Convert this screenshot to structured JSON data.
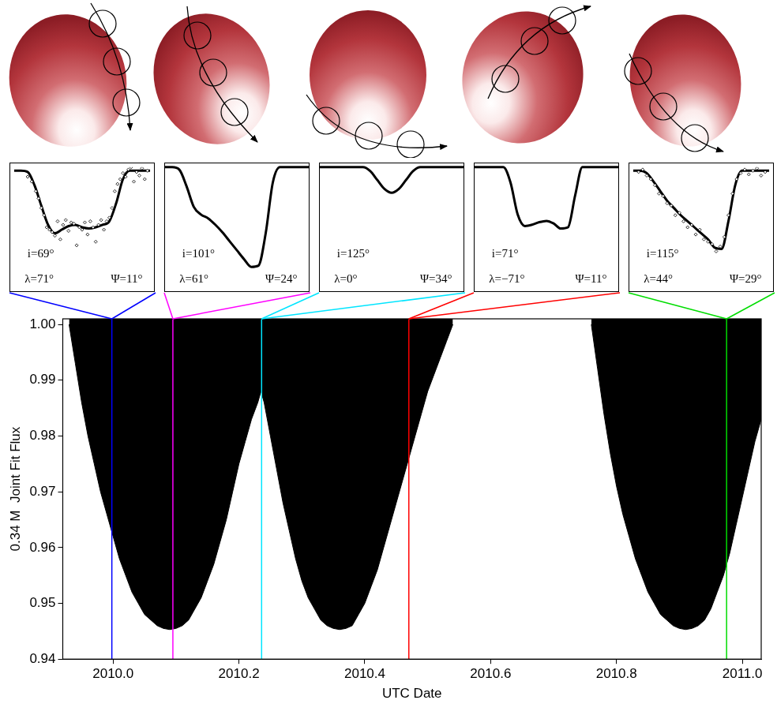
{
  "chart_data": [
    {
      "type": "line",
      "x_label": "UTC Date",
      "y_label": "0.34 M  Joint Fit Flux",
      "x": [
        2009.93,
        2009.94,
        2009.95,
        2009.96,
        2009.97,
        2009.98,
        2009.99,
        2010.0,
        2010.01,
        2010.02,
        2010.03,
        2010.04,
        2010.05,
        2010.06,
        2010.07,
        2010.08,
        2010.09,
        2010.1,
        2010.11,
        2010.12,
        2010.13,
        2010.14,
        2010.15,
        2010.16,
        2010.17,
        2010.18,
        2010.19,
        2010.2,
        2010.21,
        2010.22,
        2010.23,
        2010.235,
        2010.24,
        2010.25,
        2010.26,
        2010.27,
        2010.28,
        2010.29,
        2010.3,
        2010.31,
        2010.32,
        2010.33,
        2010.34,
        2010.35,
        2010.36,
        2010.37,
        2010.38,
        2010.39,
        2010.4,
        2010.41,
        2010.42,
        2010.43,
        2010.44,
        2010.45,
        2010.46,
        2010.47,
        2010.48,
        2010.49,
        2010.5,
        2010.51,
        2010.52,
        2010.53,
        2010.54,
        2010.65,
        2010.76,
        2010.77,
        2010.78,
        2010.79,
        2010.8,
        2010.81,
        2010.82,
        2010.83,
        2010.84,
        2010.85,
        2010.86,
        2010.87,
        2010.88,
        2010.89,
        2010.9,
        2010.91,
        2010.92,
        2010.93,
        2010.94,
        2010.95,
        2010.96,
        2010.97,
        2010.98,
        2010.99,
        2011.0,
        2011.01,
        2011.02,
        2011.03
      ],
      "values": [
        1.0,
        0.993,
        0.986,
        0.98,
        0.975,
        0.97,
        0.966,
        0.962,
        0.958,
        0.955,
        0.952,
        0.95,
        0.948,
        0.947,
        0.946,
        0.9455,
        0.9453,
        0.9455,
        0.946,
        0.947,
        0.949,
        0.951,
        0.954,
        0.957,
        0.961,
        0.965,
        0.97,
        0.975,
        0.979,
        0.983,
        0.986,
        0.988,
        0.986,
        0.98,
        0.974,
        0.968,
        0.963,
        0.958,
        0.954,
        0.951,
        0.949,
        0.947,
        0.946,
        0.9455,
        0.9453,
        0.9455,
        0.946,
        0.948,
        0.95,
        0.953,
        0.956,
        0.96,
        0.964,
        0.968,
        0.972,
        0.976,
        0.98,
        0.984,
        0.988,
        0.991,
        0.994,
        0.997,
        1.0,
        null,
        1.0,
        0.992,
        0.984,
        0.977,
        0.971,
        0.966,
        0.962,
        0.958,
        0.955,
        0.952,
        0.95,
        0.948,
        0.947,
        0.946,
        0.9455,
        0.9453,
        0.9455,
        0.946,
        0.947,
        0.949,
        0.952,
        0.955,
        0.959,
        0.964,
        0.969,
        0.974,
        0.979,
        0.983
      ],
      "color": "#000000",
      "xlim": [
        2009.92,
        2011.03
      ],
      "xticks": [
        {
          "value": 2010,
          "label": "2010.0"
        },
        2010.2,
        2010.4,
        2010.6,
        2010.8,
        {
          "value": 2011,
          "label": "2011.0"
        }
      ],
      "ylim": [
        0.94,
        1.001
      ],
      "yticks": [
        0.94,
        0.95,
        0.96,
        0.97,
        0.98,
        0.99,
        {
          "value": 1,
          "label": "1.00"
        }
      ],
      "grid": false,
      "markers": [
        {
          "x": 2009.998,
          "color": "#0000ff"
        },
        {
          "x": 2010.095,
          "color": "#ff00ff"
        },
        {
          "x": 2010.236,
          "color": "#00e5ff"
        },
        {
          "x": 2010.47,
          "color": "#ff0000"
        },
        {
          "x": 2010.975,
          "color": "#00dd00"
        }
      ]
    },
    {
      "type": "line",
      "tick_labels": false,
      "xlim": [
        0,
        1
      ],
      "ylim": [
        0,
        1
      ],
      "color": "#000000",
      "annotations": [
        "i=69°",
        "λ=71°",
        "Ψ=11°"
      ],
      "x": [
        0,
        0.05,
        0.1,
        0.15,
        0.2,
        0.25,
        0.3,
        0.35,
        0.4,
        0.45,
        0.5,
        0.55,
        0.6,
        0.65,
        0.7,
        0.75,
        0.8,
        0.85,
        0.9,
        0.95,
        1
      ],
      "values": [
        0.97,
        0.97,
        0.96,
        0.85,
        0.68,
        0.52,
        0.45,
        0.48,
        0.51,
        0.52,
        0.5,
        0.49,
        0.5,
        0.52,
        0.55,
        0.7,
        0.9,
        0.97,
        0.97,
        0.97,
        0.97
      ],
      "observed": {
        "marker": "diamond",
        "color": "#000000",
        "x": [
          0.1,
          0.13,
          0.16,
          0.18,
          0.2,
          0.22,
          0.24,
          0.26,
          0.28,
          0.3,
          0.32,
          0.34,
          0.36,
          0.38,
          0.4,
          0.42,
          0.44,
          0.46,
          0.48,
          0.5,
          0.52,
          0.54,
          0.56,
          0.58,
          0.6,
          0.62,
          0.64,
          0.66,
          0.68,
          0.7,
          0.72,
          0.74,
          0.76,
          0.78,
          0.8,
          0.82,
          0.84,
          0.86,
          0.88,
          0.9,
          0.92,
          0.94,
          0.96,
          0.98
        ],
        "values": [
          0.92,
          0.88,
          0.8,
          0.74,
          0.66,
          0.6,
          0.5,
          0.48,
          0.46,
          0.43,
          0.55,
          0.4,
          0.52,
          0.56,
          0.47,
          0.54,
          0.53,
          0.35,
          0.5,
          0.48,
          0.54,
          0.44,
          0.55,
          0.5,
          0.38,
          0.52,
          0.56,
          0.48,
          0.55,
          0.58,
          0.66,
          0.8,
          0.86,
          0.9,
          0.95,
          0.92,
          0.98,
          1.0,
          0.88,
          0.96,
          0.93,
          0.99,
          0.9,
          0.97
        ]
      }
    },
    {
      "type": "line",
      "tick_labels": false,
      "xlim": [
        0,
        1
      ],
      "ylim": [
        0,
        1
      ],
      "color": "#000000",
      "annotations": [
        "i=101°",
        "λ=61°",
        "Ψ=24°"
      ],
      "x": [
        0,
        0.05,
        0.1,
        0.15,
        0.2,
        0.25,
        0.3,
        0.35,
        0.4,
        0.45,
        0.5,
        0.55,
        0.6,
        0.65,
        0.7,
        0.75,
        0.8,
        0.85,
        0.9,
        0.95,
        1
      ],
      "values": [
        0.97,
        0.97,
        0.95,
        0.82,
        0.66,
        0.6,
        0.57,
        0.52,
        0.46,
        0.39,
        0.32,
        0.25,
        0.19,
        0.2,
        0.45,
        0.85,
        0.97,
        0.97,
        0.97,
        0.97,
        0.97
      ]
    },
    {
      "type": "line",
      "tick_labels": false,
      "xlim": [
        0,
        1
      ],
      "ylim": [
        0,
        1
      ],
      "color": "#000000",
      "annotations": [
        "i=125°",
        "λ=0°",
        "Ψ=34°"
      ],
      "x": [
        0,
        0.05,
        0.1,
        0.15,
        0.2,
        0.25,
        0.3,
        0.35,
        0.4,
        0.45,
        0.5,
        0.55,
        0.6,
        0.65,
        0.7,
        0.75,
        0.8,
        0.85,
        0.9,
        0.95,
        1
      ],
      "values": [
        0.97,
        0.97,
        0.97,
        0.97,
        0.97,
        0.97,
        0.97,
        0.94,
        0.87,
        0.8,
        0.77,
        0.8,
        0.87,
        0.94,
        0.97,
        0.97,
        0.97,
        0.97,
        0.97,
        0.97,
        0.97
      ]
    },
    {
      "type": "line",
      "tick_labels": false,
      "xlim": [
        0,
        1
      ],
      "ylim": [
        0,
        1
      ],
      "color": "#000000",
      "annotations": [
        "i=71°",
        "λ=−71°",
        "Ψ=11°"
      ],
      "x": [
        0,
        0.05,
        0.1,
        0.15,
        0.2,
        0.25,
        0.3,
        0.35,
        0.4,
        0.45,
        0.5,
        0.55,
        0.6,
        0.65,
        0.7,
        0.75,
        0.8,
        0.85,
        0.9,
        0.95,
        1
      ],
      "values": [
        0.97,
        0.97,
        0.97,
        0.97,
        0.97,
        0.85,
        0.6,
        0.51,
        0.52,
        0.54,
        0.55,
        0.53,
        0.49,
        0.5,
        0.75,
        0.97,
        0.97,
        0.97,
        0.97,
        0.97,
        0.97
      ]
    },
    {
      "type": "line",
      "tick_labels": false,
      "xlim": [
        0,
        1
      ],
      "ylim": [
        0,
        1
      ],
      "color": "#000000",
      "annotations": [
        "i=115°",
        "λ=44°",
        "Ψ=29°"
      ],
      "x": [
        0,
        0.05,
        0.1,
        0.15,
        0.2,
        0.25,
        0.3,
        0.35,
        0.4,
        0.45,
        0.5,
        0.55,
        0.6,
        0.65,
        0.7,
        0.75,
        0.8,
        0.85,
        0.9,
        0.95,
        1
      ],
      "values": [
        0.97,
        0.97,
        0.95,
        0.88,
        0.8,
        0.72,
        0.66,
        0.6,
        0.55,
        0.5,
        0.45,
        0.4,
        0.33,
        0.32,
        0.55,
        0.85,
        0.97,
        0.97,
        0.97,
        0.97,
        0.97
      ],
      "observed": {
        "marker": "diamond",
        "color": "#000000",
        "x": [
          0.04,
          0.07,
          0.1,
          0.13,
          0.16,
          0.19,
          0.22,
          0.25,
          0.28,
          0.31,
          0.34,
          0.37,
          0.4,
          0.43,
          0.46,
          0.49,
          0.52,
          0.55,
          0.58,
          0.61,
          0.64,
          0.67,
          0.7,
          0.73,
          0.76,
          0.79,
          0.82,
          0.85,
          0.88,
          0.91,
          0.94,
          0.97
        ],
        "values": [
          0.96,
          0.98,
          0.93,
          0.9,
          0.85,
          0.78,
          0.76,
          0.7,
          0.68,
          0.6,
          0.62,
          0.55,
          0.5,
          0.52,
          0.44,
          0.48,
          0.4,
          0.38,
          0.36,
          0.3,
          0.34,
          0.42,
          0.6,
          0.78,
          0.9,
          0.95,
          0.98,
          0.94,
          0.97,
          0.99,
          0.93,
          0.96
        ]
      }
    }
  ]
}
